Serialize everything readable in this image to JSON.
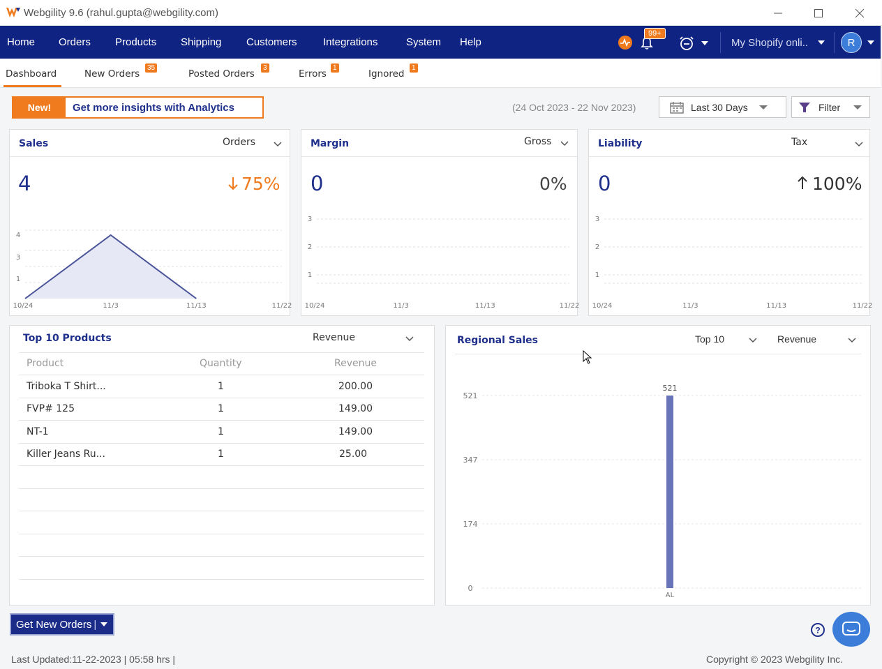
{
  "window": {
    "title": "Webgility 9.6 (rahul.gupta@webgility.com)"
  },
  "nav": {
    "items": [
      "Home",
      "Orders",
      "Products",
      "Shipping",
      "Customers",
      "Integrations",
      "System",
      "Help"
    ],
    "notifications_badge": "99+",
    "store": "My Shopify onli..",
    "avatar": "R"
  },
  "tabs": [
    {
      "label": "Dashboard",
      "badge": ""
    },
    {
      "label": "New Orders",
      "badge": "35"
    },
    {
      "label": "Posted Orders",
      "badge": "3"
    },
    {
      "label": "Errors",
      "badge": "1"
    },
    {
      "label": "Ignored",
      "badge": "1"
    }
  ],
  "promo": {
    "new_label": "New!",
    "text": "Get more insights with Analytics"
  },
  "date_range": "(24 Oct 2023 - 22 Nov 2023)",
  "period_select": "Last 30 Days",
  "filter_label": "Filter",
  "sales": {
    "title": "Sales",
    "selector": "Orders",
    "value": "4",
    "change": "75%",
    "direction": "down",
    "chart_data": {
      "type": "area",
      "x_labels": [
        "10/24",
        "11/3",
        "11/13",
        "11/22"
      ],
      "y_ticks": [
        "4",
        "3",
        "1"
      ],
      "points": [
        [
          0,
          0
        ],
        [
          1,
          4
        ],
        [
          2,
          0
        ]
      ]
    }
  },
  "margin": {
    "title": "Margin",
    "selector": "Gross",
    "value": "0",
    "change": "0%",
    "chart_data": {
      "type": "line",
      "x_labels": [
        "10/24",
        "11/3",
        "11/13",
        "11/22"
      ],
      "y_ticks": [
        "3",
        "2",
        "1"
      ]
    }
  },
  "liability": {
    "title": "Liability",
    "selector": "Tax",
    "value": "0",
    "change": "100%",
    "direction": "up",
    "chart_data": {
      "type": "line",
      "x_labels": [
        "10/24",
        "11/3",
        "11/13",
        "11/22"
      ],
      "y_ticks": [
        "3",
        "2",
        "1"
      ]
    }
  },
  "top_products": {
    "title": "Top 10 Products",
    "selector": "Revenue",
    "columns": [
      "Product",
      "Quantity",
      "Revenue"
    ],
    "rows": [
      [
        "Triboka T Shirt...",
        "1",
        "200.00"
      ],
      [
        "FVP# 125",
        "1",
        "149.00"
      ],
      [
        "NT-1",
        "1",
        "149.00"
      ],
      [
        "Killer Jeans Ru...",
        "1",
        "25.00"
      ]
    ]
  },
  "regional": {
    "title": "Regional Sales",
    "selector_top": "Top 10",
    "selector_metric": "Revenue",
    "chart_data": {
      "type": "bar",
      "categories": [
        "AL"
      ],
      "values": [
        521
      ],
      "y_ticks": [
        "521",
        "347",
        "174",
        "0"
      ],
      "ylim": [
        0,
        521
      ]
    }
  },
  "get_orders_label": "Get New Orders",
  "footer": {
    "last_updated": "Last Updated:11-22-2023 | 05:58 hrs |",
    "copyright": "Copyright © 2023 Webgility Inc."
  },
  "colors": {
    "nav_bg": "#0f2383",
    "accent": "#f07b1e",
    "title_blue": "#1f2f8c",
    "bar": "#6a74b8"
  }
}
